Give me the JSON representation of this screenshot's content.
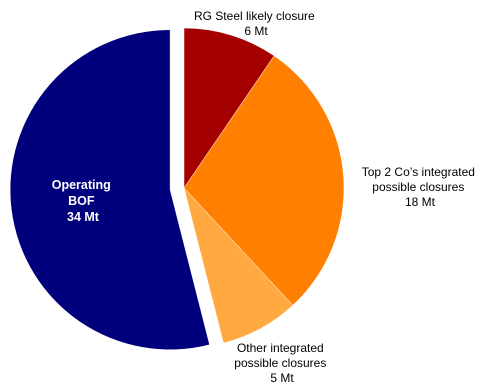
{
  "chart_data": {
    "type": "pie",
    "title": "",
    "slices": [
      {
        "label_lines": [
          "RG Steel likely closure",
          "6 Mt"
        ],
        "value": 6,
        "unit": "Mt",
        "color": "#a50000"
      },
      {
        "label_lines": [
          "Top 2 Co’s integrated",
          "possible closures",
          "18 Mt"
        ],
        "value": 18,
        "unit": "Mt",
        "color": "#ff8000"
      },
      {
        "label_lines": [
          "Other integrated",
          "possible closures",
          "5 Mt"
        ],
        "value": 5,
        "unit": "Mt",
        "color": "#ffa940"
      },
      {
        "label_lines": [
          "Operating",
          "BOF",
          "34 Mt"
        ],
        "value": 34,
        "unit": "Mt",
        "color": "#00007d",
        "exploded": true
      }
    ],
    "start_angle": "12 o'clock, clockwise"
  }
}
